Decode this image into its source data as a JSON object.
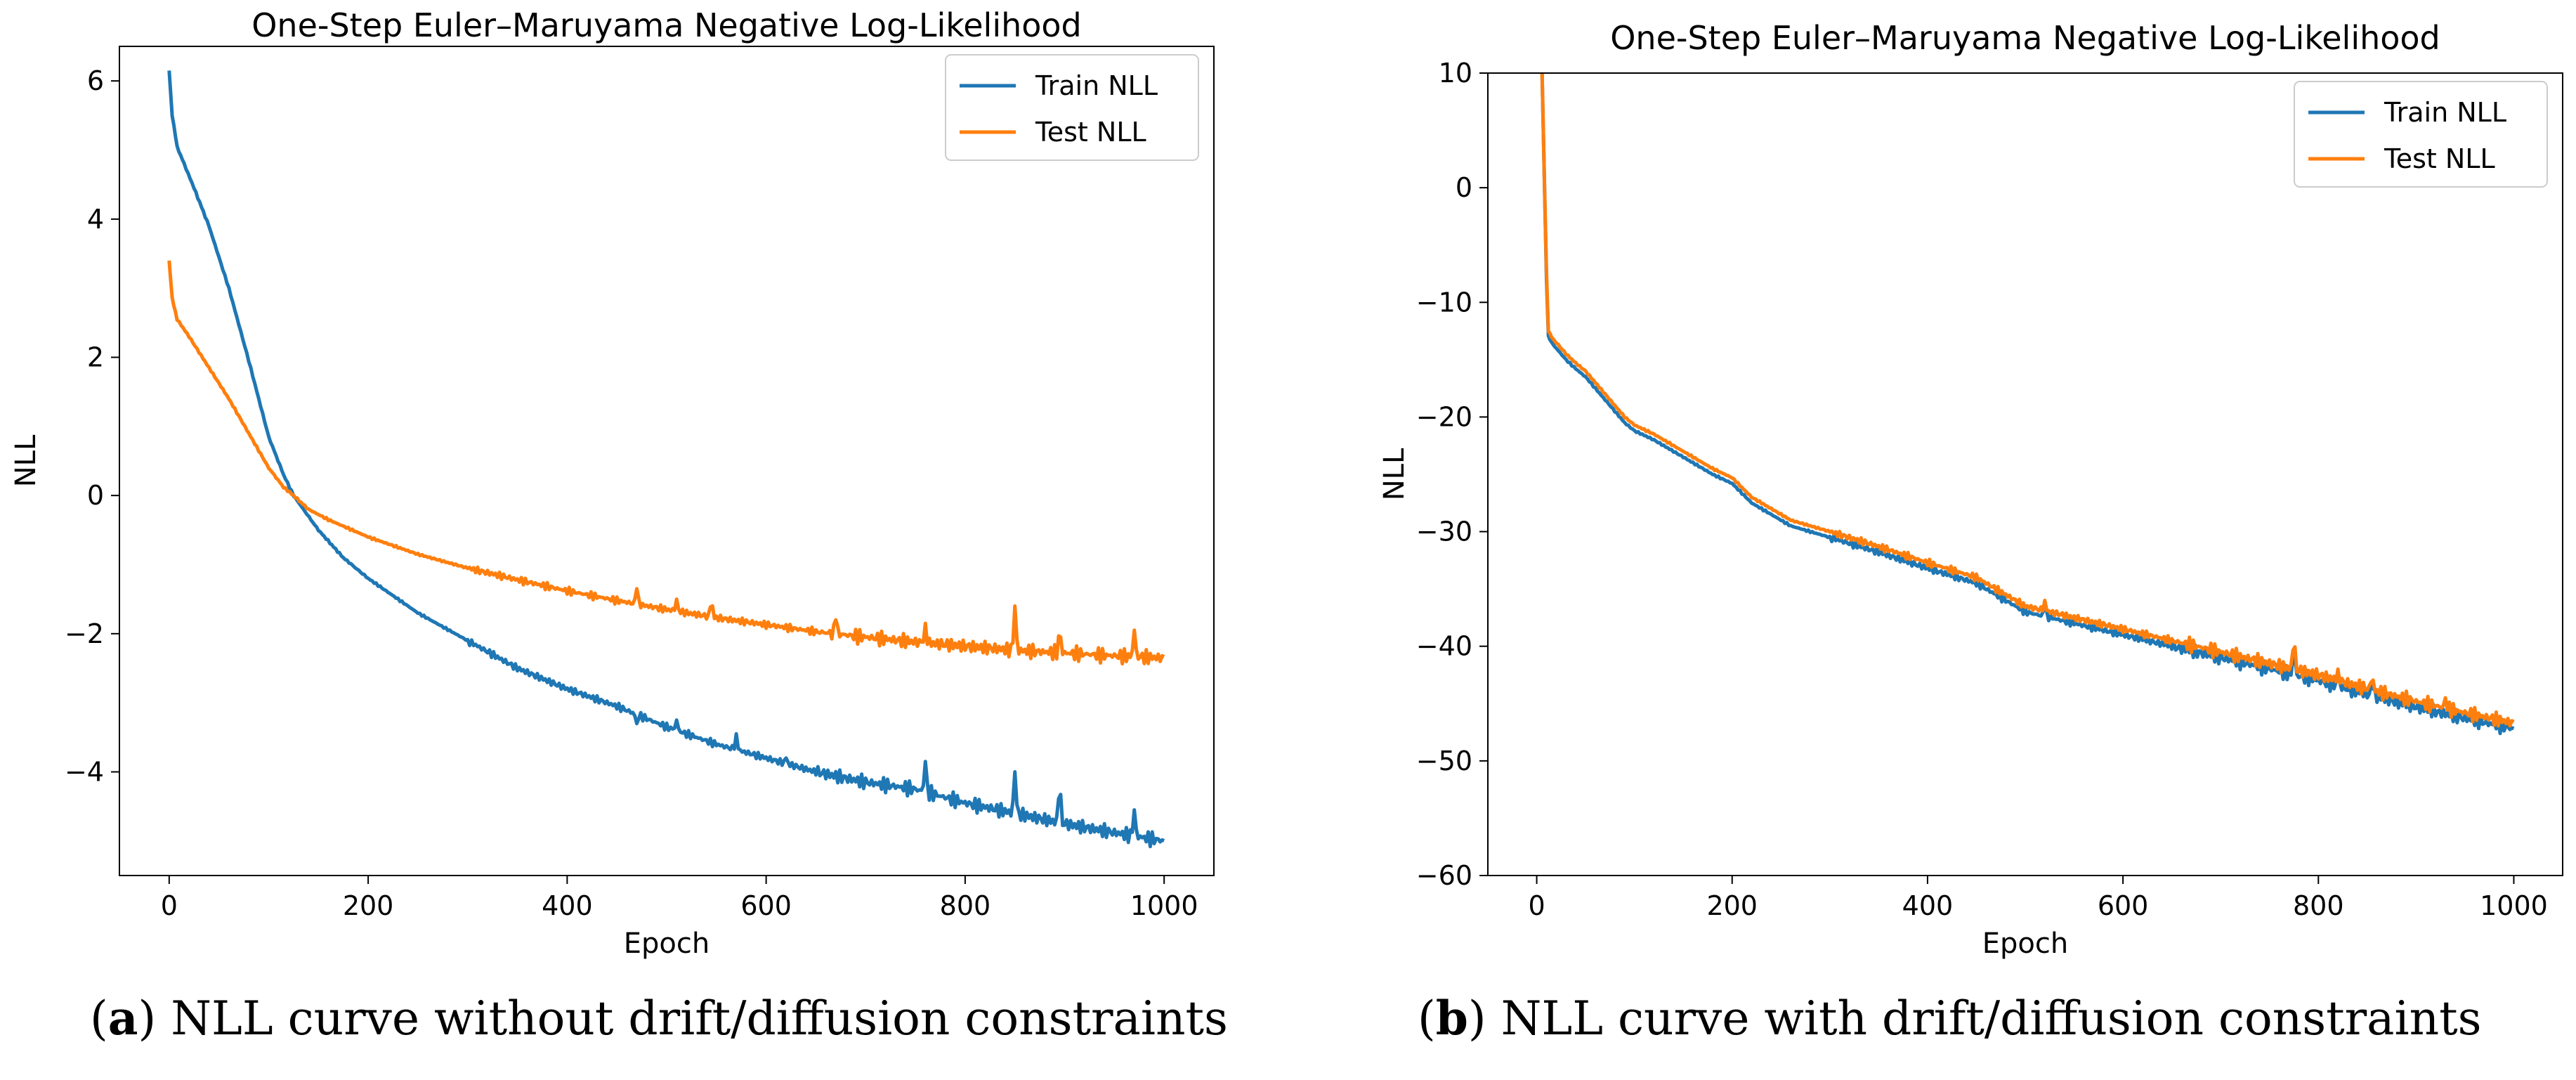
{
  "captions": [
    {
      "label": "a",
      "text": "NLL curve without drift/diffusion constraints"
    },
    {
      "label": "b",
      "text": "NLL curve with drift/diffusion constraints"
    }
  ],
  "chart_data": [
    {
      "type": "line",
      "title": "One-Step Euler–Maruyama Negative Log-Likelihood",
      "xlabel": "Epoch",
      "ylabel": "NLL",
      "xlim": [
        -50,
        1050
      ],
      "ylim": [
        -5.5,
        6.5
      ],
      "xticks": [
        0,
        200,
        400,
        600,
        800,
        1000
      ],
      "yticks": [
        -4,
        -2,
        0,
        2,
        4,
        6
      ],
      "grid": false,
      "legend": "top-right",
      "series": [
        {
          "name": "Train NLL",
          "color": "#1f77b4",
          "x": [
            0,
            3,
            8,
            15,
            25,
            40,
            60,
            80,
            100,
            115,
            125,
            135,
            150,
            175,
            200,
            250,
            300,
            350,
            400,
            450,
            500,
            550,
            600,
            650,
            700,
            750,
            800,
            850,
            900,
            950,
            1000
          ],
          "y": [
            6.15,
            5.5,
            5.05,
            4.8,
            4.45,
            3.9,
            3.0,
            1.95,
            0.85,
            0.3,
            0.0,
            -0.2,
            -0.5,
            -0.9,
            -1.2,
            -1.7,
            -2.1,
            -2.5,
            -2.8,
            -3.05,
            -3.35,
            -3.6,
            -3.8,
            -4.0,
            -4.15,
            -4.25,
            -4.45,
            -4.6,
            -4.75,
            -4.88,
            -5.0
          ],
          "spikes": [
            [
              470,
              -3.3
            ],
            [
              510,
              -3.25
            ],
            [
              570,
              -3.45
            ],
            [
              620,
              -3.8
            ],
            [
              760,
              -3.85
            ],
            [
              850,
              -4.0
            ],
            [
              895,
              -4.1
            ],
            [
              970,
              -4.55
            ]
          ]
        },
        {
          "name": "Test NLL",
          "color": "#ff7f0e",
          "x": [
            0,
            3,
            8,
            20,
            40,
            60,
            80,
            100,
            115,
            125,
            140,
            160,
            200,
            250,
            300,
            350,
            400,
            450,
            500,
            550,
            600,
            650,
            700,
            750,
            800,
            850,
            900,
            950,
            1000
          ],
          "y": [
            3.4,
            2.85,
            2.55,
            2.3,
            1.85,
            1.4,
            0.9,
            0.4,
            0.12,
            0.0,
            -0.2,
            -0.35,
            -0.6,
            -0.85,
            -1.05,
            -1.22,
            -1.38,
            -1.52,
            -1.65,
            -1.77,
            -1.87,
            -1.97,
            -2.05,
            -2.12,
            -2.18,
            -2.24,
            -2.28,
            -2.32,
            -2.35
          ],
          "spikes": [
            [
              470,
              -1.35
            ],
            [
              510,
              -1.5
            ],
            [
              545,
              -1.5
            ],
            [
              670,
              -1.8
            ],
            [
              760,
              -1.85
            ],
            [
              850,
              -1.6
            ],
            [
              895,
              -1.9
            ],
            [
              970,
              -1.95
            ]
          ]
        }
      ]
    },
    {
      "type": "line",
      "title": "One-Step Euler–Maruyama Negative Log-Likelihood",
      "xlabel": "Epoch",
      "ylabel": "NLL",
      "xlim": [
        -50,
        1050
      ],
      "ylim": [
        -60,
        10
      ],
      "xticks": [
        0,
        200,
        400,
        600,
        800,
        1000
      ],
      "yticks": [
        -60,
        -50,
        -40,
        -30,
        -20,
        -10,
        0,
        10
      ],
      "grid": false,
      "legend": "top-right",
      "series": [
        {
          "name": "Train NLL",
          "color": "#1f77b4",
          "x": [
            5,
            8,
            10,
            12,
            15,
            20,
            30,
            40,
            50,
            60,
            70,
            80,
            90,
            100,
            120,
            140,
            160,
            180,
            200,
            220,
            240,
            260,
            300,
            350,
            400,
            450,
            480,
            500,
            550,
            600,
            650,
            700,
            750,
            800,
            850,
            900,
            950,
            1000
          ],
          "y": [
            12,
            0,
            -8,
            -13,
            -13.5,
            -14,
            -15,
            -15.8,
            -16.5,
            -17.5,
            -18.5,
            -19.5,
            -20.5,
            -21.2,
            -22,
            -23,
            -24,
            -25,
            -25.8,
            -27.5,
            -28.5,
            -29.5,
            -30.5,
            -31.8,
            -33.2,
            -34.5,
            -36,
            -37,
            -38,
            -39,
            -40,
            -41,
            -42,
            -43,
            -44.2,
            -45.3,
            -46.3,
            -47.2
          ],
          "spikes": [
            [
              520,
              -36.5
            ],
            [
              775,
              -40
            ],
            [
              820,
              -42.5
            ],
            [
              855,
              -43
            ]
          ]
        },
        {
          "name": "Test NLL",
          "color": "#ff7f0e",
          "x": [
            5,
            8,
            10,
            12,
            15,
            20,
            30,
            40,
            50,
            60,
            70,
            80,
            90,
            100,
            120,
            140,
            160,
            180,
            200,
            220,
            240,
            260,
            300,
            350,
            400,
            450,
            480,
            500,
            550,
            600,
            650,
            700,
            750,
            800,
            850,
            900,
            950,
            1000
          ],
          "y": [
            12,
            0,
            -7.5,
            -12.5,
            -13,
            -13.5,
            -14.5,
            -15.3,
            -16,
            -17,
            -18,
            -19,
            -20,
            -20.7,
            -21.5,
            -22.5,
            -23.5,
            -24.5,
            -25.3,
            -27,
            -28,
            -29,
            -30,
            -31.3,
            -32.7,
            -34,
            -35.5,
            -36.5,
            -37.5,
            -38.5,
            -39.5,
            -40.5,
            -41.5,
            -42.5,
            -43.7,
            -44.8,
            -45.8,
            -46.7
          ],
          "spikes": [
            [
              520,
              -36
            ],
            [
              775,
              -39
            ],
            [
              820,
              -42
            ],
            [
              855,
              -42.5
            ],
            [
              930,
              -44.5
            ]
          ]
        }
      ]
    }
  ]
}
